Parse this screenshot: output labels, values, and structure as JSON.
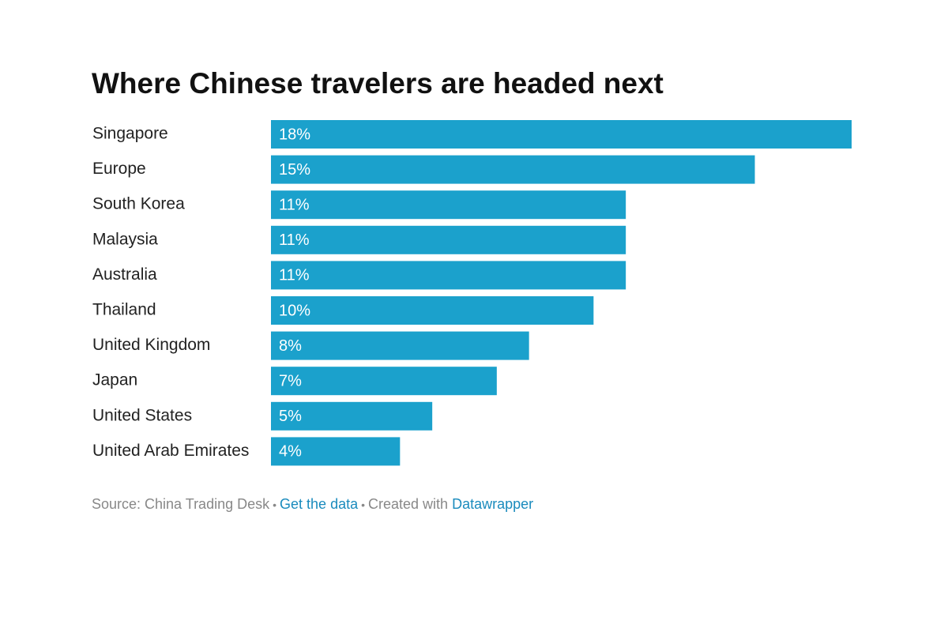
{
  "chart_data": {
    "type": "bar",
    "orientation": "horizontal",
    "title": "Where Chinese travelers are headed next",
    "categories": [
      "Singapore",
      "Europe",
      "South Korea",
      "Malaysia",
      "Australia",
      "Thailand",
      "United Kingdom",
      "Japan",
      "United States",
      "United Arab Emirates"
    ],
    "values": [
      18,
      15,
      11,
      11,
      11,
      10,
      8,
      7,
      5,
      4
    ],
    "value_labels": [
      "18%",
      "15%",
      "11%",
      "11%",
      "11%",
      "10%",
      "8%",
      "7%",
      "5%",
      "4%"
    ],
    "color": "#1ba1cc"
  },
  "footer": {
    "source": "Source: China Trading Desk",
    "separator": "•",
    "get_data": "Get the data",
    "created_with": "Created with",
    "tool": "Datawrapper"
  }
}
